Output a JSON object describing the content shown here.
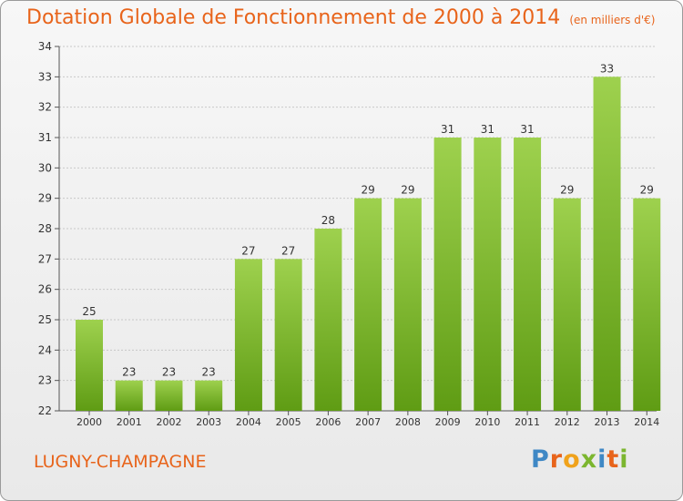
{
  "chart_data": {
    "type": "bar",
    "title": "Dotation Globale de Fonctionnement de 2000 à 2014",
    "subtitle": "(en milliers d'€)",
    "categories": [
      "2000",
      "2001",
      "2002",
      "2003",
      "2004",
      "2005",
      "2006",
      "2007",
      "2008",
      "2009",
      "2010",
      "2011",
      "2012",
      "2013",
      "2014"
    ],
    "values": [
      25,
      23,
      23,
      23,
      27,
      27,
      28,
      29,
      29,
      31,
      31,
      31,
      29,
      33,
      29
    ],
    "ylim": [
      22,
      34
    ],
    "yticks": [
      22,
      23,
      24,
      25,
      26,
      27,
      28,
      29,
      30,
      31,
      32,
      33,
      34
    ],
    "grid": true,
    "colors": {
      "bar_top": "#9ed14e",
      "bar_bottom": "#5f9c14",
      "title": "#e8641b",
      "grid": "#c8c8c8"
    }
  },
  "location": "LUGNY-CHAMPAGNE",
  "logo": {
    "letters": [
      {
        "ch": "P",
        "color": "#3f88c5"
      },
      {
        "ch": "r",
        "color": "#e8641b"
      },
      {
        "ch": "o",
        "color": "#f0a21b"
      },
      {
        "ch": "x",
        "color": "#7cb62f"
      },
      {
        "ch": "i",
        "color": "#3f88c5"
      },
      {
        "ch": "t",
        "color": "#e8641b"
      },
      {
        "ch": "i",
        "color": "#7cb62f"
      }
    ]
  }
}
